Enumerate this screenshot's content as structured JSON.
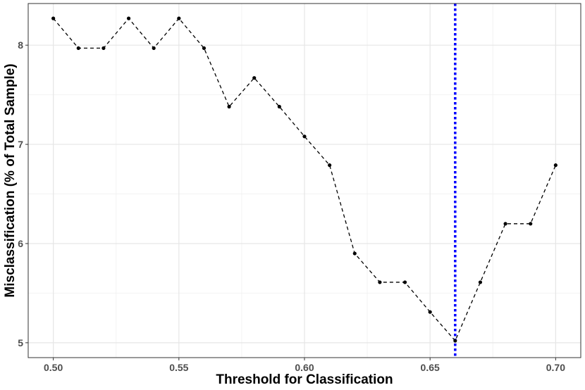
{
  "chart_data": {
    "type": "line",
    "title": "",
    "xlabel": "Threshold for Classification",
    "ylabel": "Misclassification (% of Total Sample)",
    "x": [
      0.5,
      0.51,
      0.52,
      0.53,
      0.54,
      0.55,
      0.56,
      0.57,
      0.58,
      0.59,
      0.6,
      0.61,
      0.62,
      0.63,
      0.64,
      0.65,
      0.66,
      0.67,
      0.68,
      0.69,
      0.7
    ],
    "series": [
      {
        "values": [
          8.27,
          7.97,
          7.97,
          8.27,
          7.97,
          8.27,
          7.97,
          7.38,
          7.67,
          7.38,
          7.08,
          6.79,
          5.9,
          5.61,
          5.61,
          5.31,
          5.02,
          5.61,
          6.2,
          6.2,
          6.79
        ],
        "color": "#000000",
        "line_style": "dashed",
        "markers": true
      }
    ],
    "xticks": [
      "0.50",
      "0.55",
      "0.60",
      "0.65",
      "0.70"
    ],
    "xtick_values": [
      0.5,
      0.55,
      0.6,
      0.65,
      0.7
    ],
    "yticks": [
      "5",
      "6",
      "7",
      "8"
    ],
    "ytick_values": [
      5,
      6,
      7,
      8
    ],
    "xlim": [
      0.49,
      0.71
    ],
    "ylim": [
      4.85,
      8.42
    ],
    "grid": true,
    "vline": {
      "x": 0.66,
      "color": "#0000ff",
      "style": "dotted"
    },
    "legend": "none"
  }
}
